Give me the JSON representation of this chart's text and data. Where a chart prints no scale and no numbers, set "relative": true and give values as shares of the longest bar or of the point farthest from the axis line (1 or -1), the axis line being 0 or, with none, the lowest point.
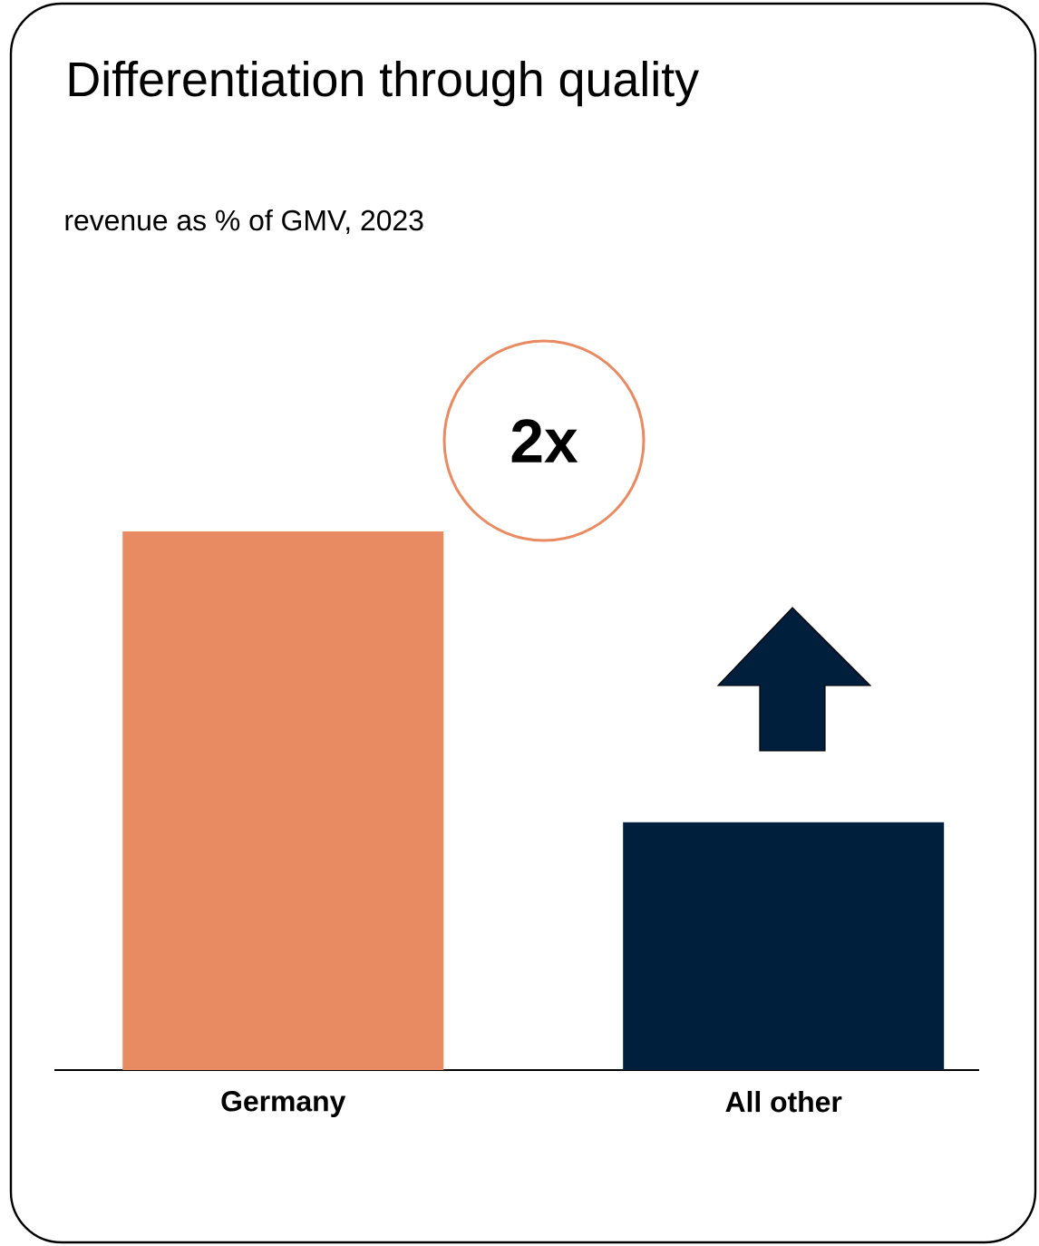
{
  "chart_data": {
    "type": "bar",
    "title": "Differentiation through quality",
    "subtitle": "revenue as % of GMV, 2023",
    "categories": [
      "Germany",
      "All other"
    ],
    "values": [
      1,
      0.46
    ],
    "colors": [
      "#e88b62",
      "#001f3d"
    ],
    "relative": true,
    "annotations": [
      "2x"
    ]
  }
}
